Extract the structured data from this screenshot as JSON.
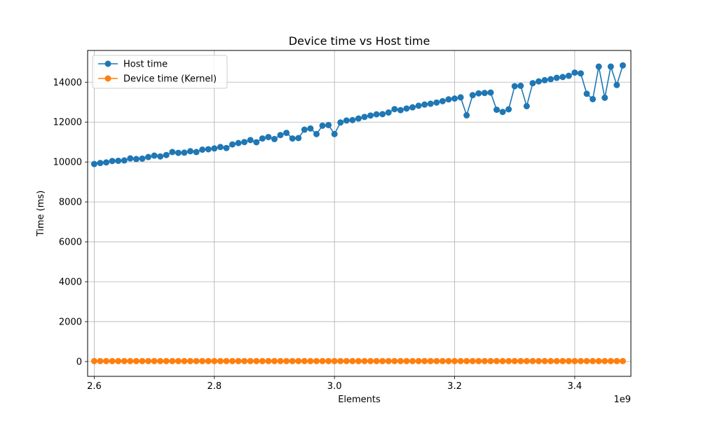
{
  "chart_data": {
    "type": "line",
    "title": "Device time vs Host time",
    "xlabel": "Elements",
    "ylabel": "Time (ms)",
    "x_offset_label": "1e9",
    "xlim": [
      2.589,
      3.4935
    ],
    "ylim": [
      -741,
      15590
    ],
    "x_ticks": [
      2.6,
      2.8,
      3.0,
      3.2,
      3.4
    ],
    "x_tick_labels": [
      "2.6",
      "2.8",
      "3.0",
      "3.2",
      "3.4"
    ],
    "y_ticks": [
      0,
      2000,
      4000,
      6000,
      8000,
      10000,
      12000,
      14000
    ],
    "y_tick_labels": [
      "0",
      "2000",
      "4000",
      "6000",
      "8000",
      "10000",
      "12000",
      "14000"
    ],
    "grid": true,
    "legend_position": "upper-left",
    "x": [
      2.6,
      2.61,
      2.62,
      2.63,
      2.64,
      2.65,
      2.66,
      2.67,
      2.68,
      2.69,
      2.7,
      2.71,
      2.72,
      2.73,
      2.74,
      2.75,
      2.76,
      2.77,
      2.78,
      2.79,
      2.8,
      2.81,
      2.82,
      2.83,
      2.84,
      2.85,
      2.86,
      2.87,
      2.88,
      2.89,
      2.9,
      2.91,
      2.92,
      2.93,
      2.94,
      2.95,
      2.96,
      2.97,
      2.98,
      2.99,
      3.0,
      3.01,
      3.02,
      3.03,
      3.04,
      3.05,
      3.06,
      3.07,
      3.08,
      3.09,
      3.1,
      3.11,
      3.12,
      3.13,
      3.14,
      3.15,
      3.16,
      3.17,
      3.18,
      3.19,
      3.2,
      3.21,
      3.22,
      3.23,
      3.24,
      3.25,
      3.26,
      3.27,
      3.28,
      3.29,
      3.3,
      3.31,
      3.32,
      3.33,
      3.34,
      3.35,
      3.36,
      3.37,
      3.38,
      3.39,
      3.4,
      3.41,
      3.42,
      3.43,
      3.44,
      3.45,
      3.46,
      3.47,
      3.48
    ],
    "series": [
      {
        "name": "Host time",
        "color": "#1f77b4",
        "values": [
          9900,
          9950,
          9980,
          10050,
          10060,
          10080,
          10180,
          10150,
          10170,
          10250,
          10320,
          10280,
          10350,
          10500,
          10460,
          10470,
          10540,
          10500,
          10620,
          10640,
          10680,
          10750,
          10700,
          10880,
          10950,
          11000,
          11100,
          10990,
          11180,
          11250,
          11150,
          11350,
          11460,
          11180,
          11200,
          11620,
          11680,
          11400,
          11820,
          11850,
          11400,
          11980,
          12080,
          12100,
          12180,
          12260,
          12330,
          12390,
          12400,
          12480,
          12650,
          12600,
          12680,
          12740,
          12820,
          12880,
          12920,
          12980,
          13050,
          13140,
          13180,
          13240,
          12340,
          13350,
          13440,
          13460,
          13480,
          12620,
          12510,
          12640,
          13800,
          13820,
          12800,
          13950,
          14040,
          14100,
          14150,
          14220,
          14260,
          14320,
          14480,
          14440,
          13420,
          13150,
          14780,
          13220,
          14780,
          13860,
          14840
        ]
      },
      {
        "name": "Device time (Kernel)",
        "color": "#ff7f0e",
        "values": [
          25,
          25,
          25,
          25,
          25,
          25,
          25,
          25,
          25,
          25,
          25,
          25,
          25,
          25,
          25,
          25,
          25,
          25,
          25,
          25,
          25,
          25,
          25,
          25,
          25,
          25,
          25,
          25,
          25,
          25,
          25,
          25,
          25,
          25,
          25,
          25,
          25,
          25,
          25,
          25,
          25,
          25,
          25,
          25,
          25,
          25,
          25,
          25,
          25,
          25,
          25,
          25,
          25,
          25,
          25,
          25,
          25,
          25,
          25,
          25,
          25,
          25,
          25,
          25,
          25,
          25,
          25,
          25,
          25,
          25,
          25,
          25,
          25,
          25,
          25,
          25,
          25,
          25,
          25,
          25,
          25,
          25,
          25,
          25,
          25,
          25,
          25,
          25,
          25
        ]
      }
    ]
  }
}
